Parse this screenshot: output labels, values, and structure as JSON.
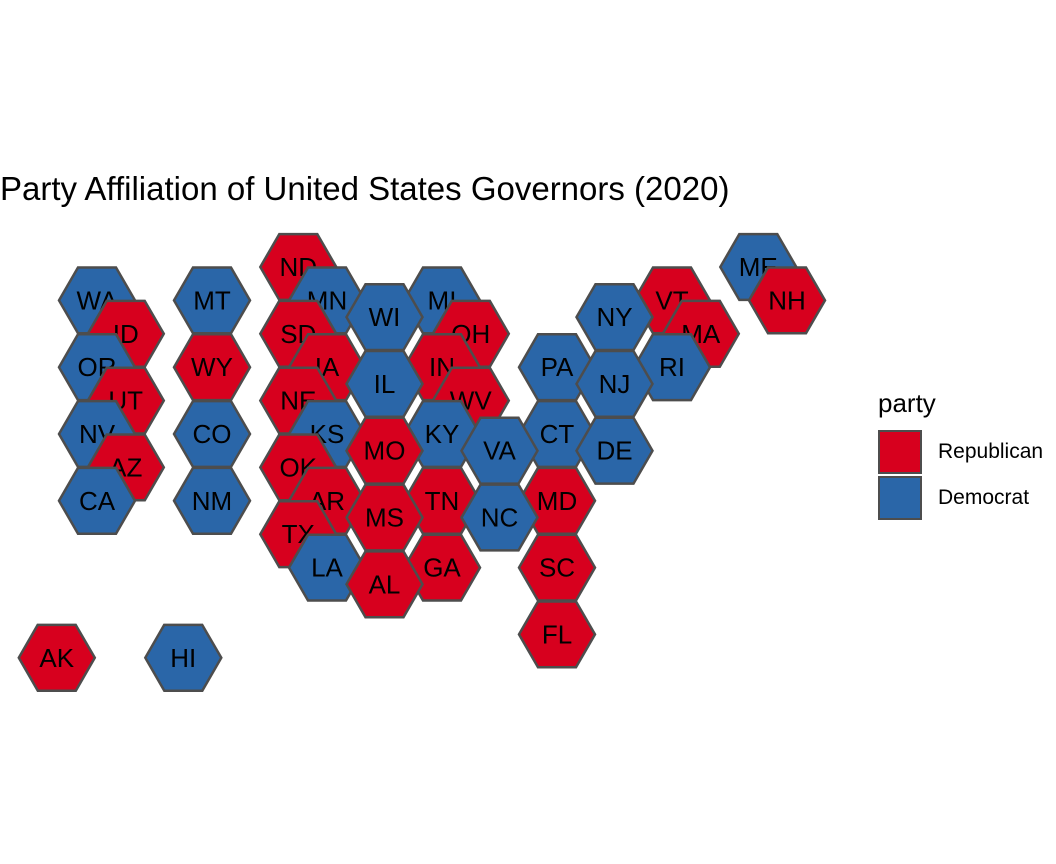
{
  "title": "Party Affiliation of United States Governors (2020)",
  "legend": {
    "title": "party",
    "items": [
      {
        "label": "Republican",
        "color": "#d7001e"
      },
      {
        "label": "Democrat",
        "color": "#2a66a8"
      }
    ]
  },
  "states": [
    {
      "abbr": "ND",
      "party": "Republican",
      "col": 4,
      "row": 0
    },
    {
      "abbr": "ME",
      "party": "Democrat",
      "col": 12,
      "row": 0
    },
    {
      "abbr": "WA",
      "party": "Democrat",
      "col": 0.5,
      "row": 1
    },
    {
      "abbr": "MT",
      "party": "Democrat",
      "col": 2.5,
      "row": 1
    },
    {
      "abbr": "MN",
      "party": "Democrat",
      "col": 4.5,
      "row": 1
    },
    {
      "abbr": "MI",
      "party": "Democrat",
      "col": 6.5,
      "row": 1
    },
    {
      "abbr": "VT",
      "party": "Republican",
      "col": 10.5,
      "row": 1
    },
    {
      "abbr": "NH",
      "party": "Republican",
      "col": 12.5,
      "row": 1
    },
    {
      "abbr": "ID",
      "party": "Republican",
      "col": 1,
      "row": 2
    },
    {
      "abbr": "SD",
      "party": "Republican",
      "col": 4,
      "row": 2
    },
    {
      "abbr": "WI",
      "party": "Democrat",
      "col": 5.5,
      "row": 1.5
    },
    {
      "abbr": "OH",
      "party": "Republican",
      "col": 7,
      "row": 2
    },
    {
      "abbr": "NY",
      "party": "Democrat",
      "col": 9.5,
      "row": 1.5
    },
    {
      "abbr": "MA",
      "party": "Republican",
      "col": 11,
      "row": 2
    },
    {
      "abbr": "OR",
      "party": "Democrat",
      "col": 0.5,
      "row": 3
    },
    {
      "abbr": "WY",
      "party": "Republican",
      "col": 2.5,
      "row": 3
    },
    {
      "abbr": "IA",
      "party": "Republican",
      "col": 4.5,
      "row": 3
    },
    {
      "abbr": "IN",
      "party": "Republican",
      "col": 6.5,
      "row": 3
    },
    {
      "abbr": "PA",
      "party": "Democrat",
      "col": 8.5,
      "row": 3
    },
    {
      "abbr": "RI",
      "party": "Democrat",
      "col": 10.5,
      "row": 3
    },
    {
      "abbr": "UT",
      "party": "Republican",
      "col": 1,
      "row": 4
    },
    {
      "abbr": "NE",
      "party": "Republican",
      "col": 4,
      "row": 4
    },
    {
      "abbr": "IL",
      "party": "Democrat",
      "col": 5.5,
      "row": 3.5
    },
    {
      "abbr": "WV",
      "party": "Republican",
      "col": 7,
      "row": 4
    },
    {
      "abbr": "NJ",
      "party": "Democrat",
      "col": 9.5,
      "row": 3.5
    },
    {
      "abbr": "NV",
      "party": "Democrat",
      "col": 0.5,
      "row": 5
    },
    {
      "abbr": "CO",
      "party": "Democrat",
      "col": 2.5,
      "row": 5
    },
    {
      "abbr": "KS",
      "party": "Democrat",
      "col": 4.5,
      "row": 5
    },
    {
      "abbr": "KY",
      "party": "Democrat",
      "col": 6.5,
      "row": 5
    },
    {
      "abbr": "CT",
      "party": "Democrat",
      "col": 8.5,
      "row": 5
    },
    {
      "abbr": "AZ",
      "party": "Republican",
      "col": 1,
      "row": 6
    },
    {
      "abbr": "OK",
      "party": "Republican",
      "col": 4,
      "row": 6
    },
    {
      "abbr": "MO",
      "party": "Republican",
      "col": 5.5,
      "row": 5.5
    },
    {
      "abbr": "VA",
      "party": "Democrat",
      "col": 7.5,
      "row": 5.5
    },
    {
      "abbr": "DE",
      "party": "Democrat",
      "col": 9.5,
      "row": 5.5
    },
    {
      "abbr": "CA",
      "party": "Democrat",
      "col": 0.5,
      "row": 7
    },
    {
      "abbr": "NM",
      "party": "Democrat",
      "col": 2.5,
      "row": 7
    },
    {
      "abbr": "AR",
      "party": "Republican",
      "col": 4.5,
      "row": 7
    },
    {
      "abbr": "TN",
      "party": "Republican",
      "col": 6.5,
      "row": 7
    },
    {
      "abbr": "MD",
      "party": "Republican",
      "col": 8.5,
      "row": 7
    },
    {
      "abbr": "TX",
      "party": "Republican",
      "col": 4,
      "row": 8
    },
    {
      "abbr": "MS",
      "party": "Republican",
      "col": 5.5,
      "row": 7.5
    },
    {
      "abbr": "NC",
      "party": "Democrat",
      "col": 7.5,
      "row": 7.5
    },
    {
      "abbr": "LA",
      "party": "Democrat",
      "col": 4.5,
      "row": 9
    },
    {
      "abbr": "GA",
      "party": "Republican",
      "col": 6.5,
      "row": 9
    },
    {
      "abbr": "SC",
      "party": "Republican",
      "col": 8.5,
      "row": 9
    },
    {
      "abbr": "AL",
      "party": "Republican",
      "col": 5.5,
      "row": 9.5
    },
    {
      "abbr": "FL",
      "party": "Republican",
      "col": 8.5,
      "row": 11
    },
    {
      "abbr": "AK",
      "party": "Republican",
      "col": -0.2,
      "row": 11.7
    },
    {
      "abbr": "HI",
      "party": "Democrat",
      "col": 2,
      "row": 11.7
    }
  ]
}
